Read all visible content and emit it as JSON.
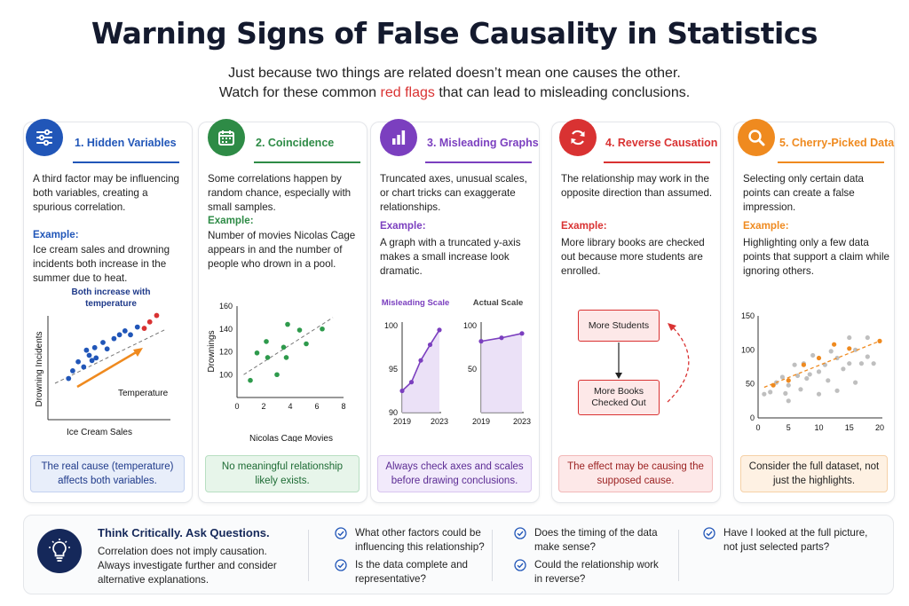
{
  "header": {
    "title": "Warning Signs of False Causality in Statistics",
    "subtitle_line1": "Just because two things are related doesn’t mean one causes the other.",
    "subtitle_line2_pre": "Watch for these common ",
    "subtitle_line2_red": "red flags",
    "subtitle_line2_post": " that can lead to misleading conclusions."
  },
  "cards": [
    {
      "title": "1. Hidden Variables",
      "color": "#2156b8",
      "icon": "sliders-icon",
      "description": "A third factor may be influencing both variables, creating a spurious correlation.",
      "example_label": "Example:",
      "example": "Ice cream sales and drowning incidents both increase in the summer due to heat.",
      "note": "The real cause (temperature) affects both variables."
    },
    {
      "title": "2. Coincidence",
      "color": "#2e8b46",
      "icon": "calendar-icon",
      "description": "Some correlations happen by random chance, especially with small samples.",
      "example_label": "Example:",
      "example": "Number of movies Nicolas Cage appears in and the number of people who drown in a pool.",
      "note": "No meaningful relationship likely exists."
    },
    {
      "title": "3. Misleading Graphs",
      "color": "#7b3fbf",
      "icon": "bar-chart-icon",
      "description": "Truncated axes, unusual scales, or chart tricks can exaggerate relationships.",
      "example_label": "Example:",
      "example": "A graph with a truncated y-axis makes a small increase look dramatic.",
      "note": "Always check axes and scales before drawing conclusions."
    },
    {
      "title": "4. Reverse Causation",
      "color": "#d93232",
      "icon": "refresh-icon",
      "description": "The relationship may work in the opposite direction than assumed.",
      "example_label": "Example:",
      "example": "More library books are checked out because more students are enrolled.",
      "note": "The effect may be causing the supposed cause."
    },
    {
      "title": "5. Cherry-Picked Data",
      "color": "#ef8a1f",
      "icon": "magnifier-icon",
      "description": "Selecting only certain data points can create a false impression.",
      "example_label": "Example:",
      "example": "Highlighting only a few data points that support a claim while ignoring others.",
      "note": "Consider the full dataset, not just the highlights."
    }
  ],
  "chart_data": [
    {
      "type": "scatter",
      "title": "Both increase with temperature",
      "xlabel": "Ice Cream Sales",
      "ylabel": "Drowning Incidents",
      "annotation": "Temperature",
      "series": [
        {
          "color": "#2156b8",
          "points": [
            [
              1.5,
              3.2
            ],
            [
              1.8,
              3.8
            ],
            [
              2.2,
              4.5
            ],
            [
              2.6,
              4.1
            ],
            [
              3.0,
              5.0
            ],
            [
              3.4,
              5.6
            ],
            [
              3.5,
              4.8
            ],
            [
              4.0,
              6.0
            ],
            [
              4.3,
              5.5
            ],
            [
              4.8,
              6.3
            ],
            [
              5.2,
              6.6
            ],
            [
              5.6,
              6.9
            ],
            [
              6.0,
              6.6
            ],
            [
              6.5,
              7.2
            ],
            [
              3.2,
              4.6
            ],
            [
              2.8,
              5.4
            ]
          ]
        },
        {
          "color": "#d93232",
          "points": [
            [
              7.0,
              7.1
            ],
            [
              7.4,
              7.6
            ],
            [
              7.9,
              8.1
            ]
          ]
        }
      ]
    },
    {
      "type": "scatter",
      "xlabel": "Nicolas Cage Movies",
      "ylabel": "Drownings",
      "xlim": [
        0,
        8
      ],
      "ylim": [
        80,
        160
      ],
      "xticks": [
        0,
        2,
        4,
        6,
        8
      ],
      "yticks": [
        100,
        120,
        140,
        160
      ],
      "points": [
        [
          1,
          95
        ],
        [
          1.5,
          119
        ],
        [
          2.2,
          129
        ],
        [
          2.3,
          115
        ],
        [
          3,
          100
        ],
        [
          3.5,
          124
        ],
        [
          3.7,
          115
        ],
        [
          3.8,
          144
        ],
        [
          4.7,
          139
        ],
        [
          5.2,
          127
        ],
        [
          6.4,
          140
        ]
      ],
      "trend": [
        [
          0.5,
          100
        ],
        [
          7.2,
          150
        ]
      ]
    },
    {
      "type": "line",
      "title": "Misleading Scale",
      "x": [
        2019,
        2020,
        2021,
        2022,
        2023
      ],
      "values": [
        92.5,
        93.5,
        96,
        97.8,
        99.5
      ],
      "ylim": [
        90,
        100
      ],
      "yticks": [
        90,
        95,
        100
      ],
      "xticks": [
        2019,
        2023
      ]
    },
    {
      "type": "line",
      "title": "Actual Scale",
      "x": [
        2019,
        2021,
        2023
      ],
      "values": [
        82,
        86,
        91
      ],
      "ylim": [
        0,
        100
      ],
      "yticks": [
        0,
        50,
        100
      ],
      "xticks": [
        2019,
        2023
      ]
    },
    {
      "type": "diagram",
      "nodes": [
        "More Students",
        "More Books Checked Out"
      ]
    },
    {
      "type": "scatter",
      "xlim": [
        0,
        20
      ],
      "ylim": [
        0,
        150
      ],
      "xticks": [
        0,
        5,
        10,
        15,
        20
      ],
      "yticks": [
        0,
        50,
        100,
        150
      ],
      "series": [
        {
          "name": "all",
          "color": "#a9a9a9",
          "points": [
            [
              1,
              35
            ],
            [
              2,
              38
            ],
            [
              3,
              52
            ],
            [
              4,
              60
            ],
            [
              4.5,
              36
            ],
            [
              5,
              25
            ],
            [
              5,
              48
            ],
            [
              6,
              78
            ],
            [
              6.5,
              62
            ],
            [
              7,
              42
            ],
            [
              7.5,
              80
            ],
            [
              8,
              58
            ],
            [
              8.5,
              64
            ],
            [
              9,
              92
            ],
            [
              10,
              68
            ],
            [
              10,
              35
            ],
            [
              11,
              78
            ],
            [
              11.5,
              55
            ],
            [
              12,
              98
            ],
            [
              13,
              40
            ],
            [
              13,
              88
            ],
            [
              14,
              72
            ],
            [
              15,
              80
            ],
            [
              16,
              100
            ],
            [
              16,
              52
            ],
            [
              17,
              80
            ],
            [
              18,
              90
            ],
            [
              19,
              80
            ],
            [
              15,
              118
            ],
            [
              18,
              118
            ]
          ]
        },
        {
          "name": "highlighted",
          "color": "#ef8a1f",
          "points": [
            [
              2.5,
              48
            ],
            [
              5,
              55
            ],
            [
              7.5,
              78
            ],
            [
              10,
              88
            ],
            [
              12.5,
              108
            ],
            [
              15,
              102
            ],
            [
              20,
              113
            ]
          ]
        }
      ],
      "trend": [
        [
          1,
          45
        ],
        [
          20,
          113
        ]
      ]
    }
  ],
  "footer": {
    "title": "Think Critically. Ask Questions.",
    "description": "Correlation does not imply causation. Always investigate further and consider alternative explanations.",
    "questions": [
      "What other factors could be influencing this relationship?",
      "Is the data complete and representative?",
      "Does the timing of the data make sense?",
      "Could the relationship work in reverse?",
      "Have I looked at the full picture, not just selected parts?"
    ]
  }
}
